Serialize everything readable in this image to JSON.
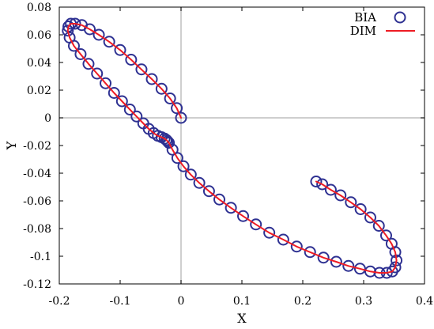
{
  "chart_data": {
    "type": "scatter",
    "xlabel": "X",
    "ylabel": "Y",
    "xlim": [
      -0.2,
      0.4
    ],
    "ylim": [
      -0.12,
      0.08
    ],
    "xticks": [
      -0.2,
      -0.1,
      0,
      0.1,
      0.2,
      0.3,
      0.4
    ],
    "yticks": [
      -0.12,
      -0.1,
      -0.08,
      -0.06,
      -0.04,
      -0.02,
      0,
      0.02,
      0.04,
      0.06,
      0.08
    ],
    "xtick_labels": [
      "-0.2",
      "-0.1",
      "0",
      "0.1",
      "0.2",
      "0.3",
      "0.4"
    ],
    "ytick_labels": [
      "-0.12",
      "-0.1",
      "-0.08",
      "-0.06",
      "-0.04",
      "-0.02",
      "0",
      "0.02",
      "0.04",
      "0.06",
      "0.08"
    ],
    "zero_lines": true,
    "legend_position": "top-right",
    "series": [
      {
        "name": "BIA",
        "marker": "circle",
        "color": "#2e3192",
        "x": [
          0.0,
          -0.007,
          -0.018,
          -0.032,
          -0.048,
          -0.065,
          -0.082,
          -0.1,
          -0.118,
          -0.135,
          -0.15,
          -0.163,
          -0.174,
          -0.181,
          -0.185,
          -0.186,
          -0.183,
          -0.176,
          -0.165,
          -0.152,
          -0.138,
          -0.124,
          -0.11,
          -0.097,
          -0.084,
          -0.073,
          -0.062,
          -0.053,
          -0.045,
          -0.038,
          -0.032,
          -0.027,
          -0.024,
          -0.022,
          -0.02,
          -0.014,
          -0.006,
          0.004,
          0.016,
          0.03,
          0.046,
          0.063,
          0.082,
          0.102,
          0.123,
          0.145,
          0.168,
          0.19,
          0.212,
          0.234,
          0.255,
          0.275,
          0.294,
          0.311,
          0.326,
          0.338,
          0.347,
          0.352,
          0.354,
          0.352,
          0.346,
          0.337,
          0.325,
          0.311,
          0.295,
          0.279,
          0.262,
          0.246,
          0.232,
          0.222
        ],
        "y": [
          0.0,
          0.007,
          0.014,
          0.021,
          0.028,
          0.035,
          0.042,
          0.049,
          0.055,
          0.06,
          0.064,
          0.067,
          0.068,
          0.068,
          0.066,
          0.063,
          0.058,
          0.052,
          0.046,
          0.039,
          0.032,
          0.025,
          0.018,
          0.012,
          0.006,
          0.001,
          -0.004,
          -0.008,
          -0.011,
          -0.013,
          -0.014,
          -0.015,
          -0.016,
          -0.017,
          -0.018,
          -0.023,
          -0.029,
          -0.035,
          -0.041,
          -0.047,
          -0.053,
          -0.059,
          -0.065,
          -0.071,
          -0.077,
          -0.083,
          -0.088,
          -0.093,
          -0.097,
          -0.101,
          -0.104,
          -0.107,
          -0.109,
          -0.111,
          -0.112,
          -0.112,
          -0.111,
          -0.108,
          -0.103,
          -0.097,
          -0.091,
          -0.085,
          -0.078,
          -0.072,
          -0.066,
          -0.061,
          -0.056,
          -0.052,
          -0.048,
          -0.046
        ]
      },
      {
        "name": "DIM",
        "marker": "line",
        "color": "#ee1c24",
        "x": [
          0.0,
          -0.007,
          -0.018,
          -0.032,
          -0.048,
          -0.065,
          -0.082,
          -0.1,
          -0.118,
          -0.135,
          -0.15,
          -0.163,
          -0.174,
          -0.181,
          -0.185,
          -0.186,
          -0.183,
          -0.176,
          -0.165,
          -0.152,
          -0.138,
          -0.124,
          -0.11,
          -0.097,
          -0.084,
          -0.073,
          -0.062,
          -0.053,
          -0.045,
          -0.038,
          -0.032,
          -0.027,
          -0.024,
          -0.022,
          -0.02,
          -0.014,
          -0.006,
          0.004,
          0.016,
          0.03,
          0.046,
          0.063,
          0.082,
          0.102,
          0.123,
          0.145,
          0.168,
          0.19,
          0.212,
          0.234,
          0.255,
          0.275,
          0.294,
          0.311,
          0.326,
          0.338,
          0.347,
          0.352,
          0.354,
          0.352,
          0.346,
          0.337,
          0.325,
          0.311,
          0.295,
          0.279,
          0.262,
          0.246,
          0.232,
          0.222
        ],
        "y": [
          0.0,
          0.007,
          0.014,
          0.021,
          0.028,
          0.035,
          0.042,
          0.049,
          0.055,
          0.06,
          0.064,
          0.067,
          0.068,
          0.068,
          0.066,
          0.063,
          0.058,
          0.052,
          0.046,
          0.039,
          0.032,
          0.025,
          0.018,
          0.012,
          0.006,
          0.001,
          -0.004,
          -0.008,
          -0.011,
          -0.013,
          -0.014,
          -0.015,
          -0.016,
          -0.017,
          -0.018,
          -0.023,
          -0.029,
          -0.035,
          -0.041,
          -0.047,
          -0.053,
          -0.059,
          -0.065,
          -0.071,
          -0.077,
          -0.083,
          -0.088,
          -0.093,
          -0.097,
          -0.101,
          -0.104,
          -0.107,
          -0.109,
          -0.111,
          -0.112,
          -0.112,
          -0.111,
          -0.108,
          -0.103,
          -0.097,
          -0.091,
          -0.085,
          -0.078,
          -0.072,
          -0.066,
          -0.061,
          -0.056,
          -0.052,
          -0.048,
          -0.046
        ]
      }
    ]
  }
}
